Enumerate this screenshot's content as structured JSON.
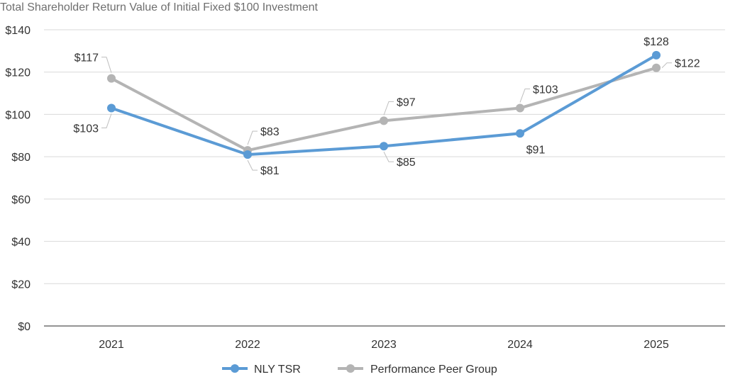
{
  "chart_data": {
    "type": "line",
    "title": "Total Shareholder Return Value of Initial Fixed $100 Investment",
    "categories": [
      "2021",
      "2022",
      "2023",
      "2024",
      "2025"
    ],
    "ylim": [
      0,
      140
    ],
    "yticks": [
      0,
      20,
      40,
      60,
      80,
      100,
      120,
      140
    ],
    "ytick_labels": [
      "$0",
      "$20",
      "$40",
      "$60",
      "$80",
      "$100",
      "$120",
      "$140"
    ],
    "grid": true,
    "legend_position": "bottom",
    "series": [
      {
        "name": "NLY TSR",
        "color": "#5b9bd5",
        "values": [
          103,
          81,
          85,
          91,
          128
        ],
        "labels": [
          "$103",
          "$81",
          "$85",
          "$91",
          "$128"
        ]
      },
      {
        "name": "Performance Peer Group",
        "color": "#b4b4b4",
        "values": [
          117,
          83,
          97,
          103,
          122
        ],
        "labels": [
          "$117",
          "$83",
          "$97",
          "$103",
          "$122"
        ]
      }
    ]
  }
}
